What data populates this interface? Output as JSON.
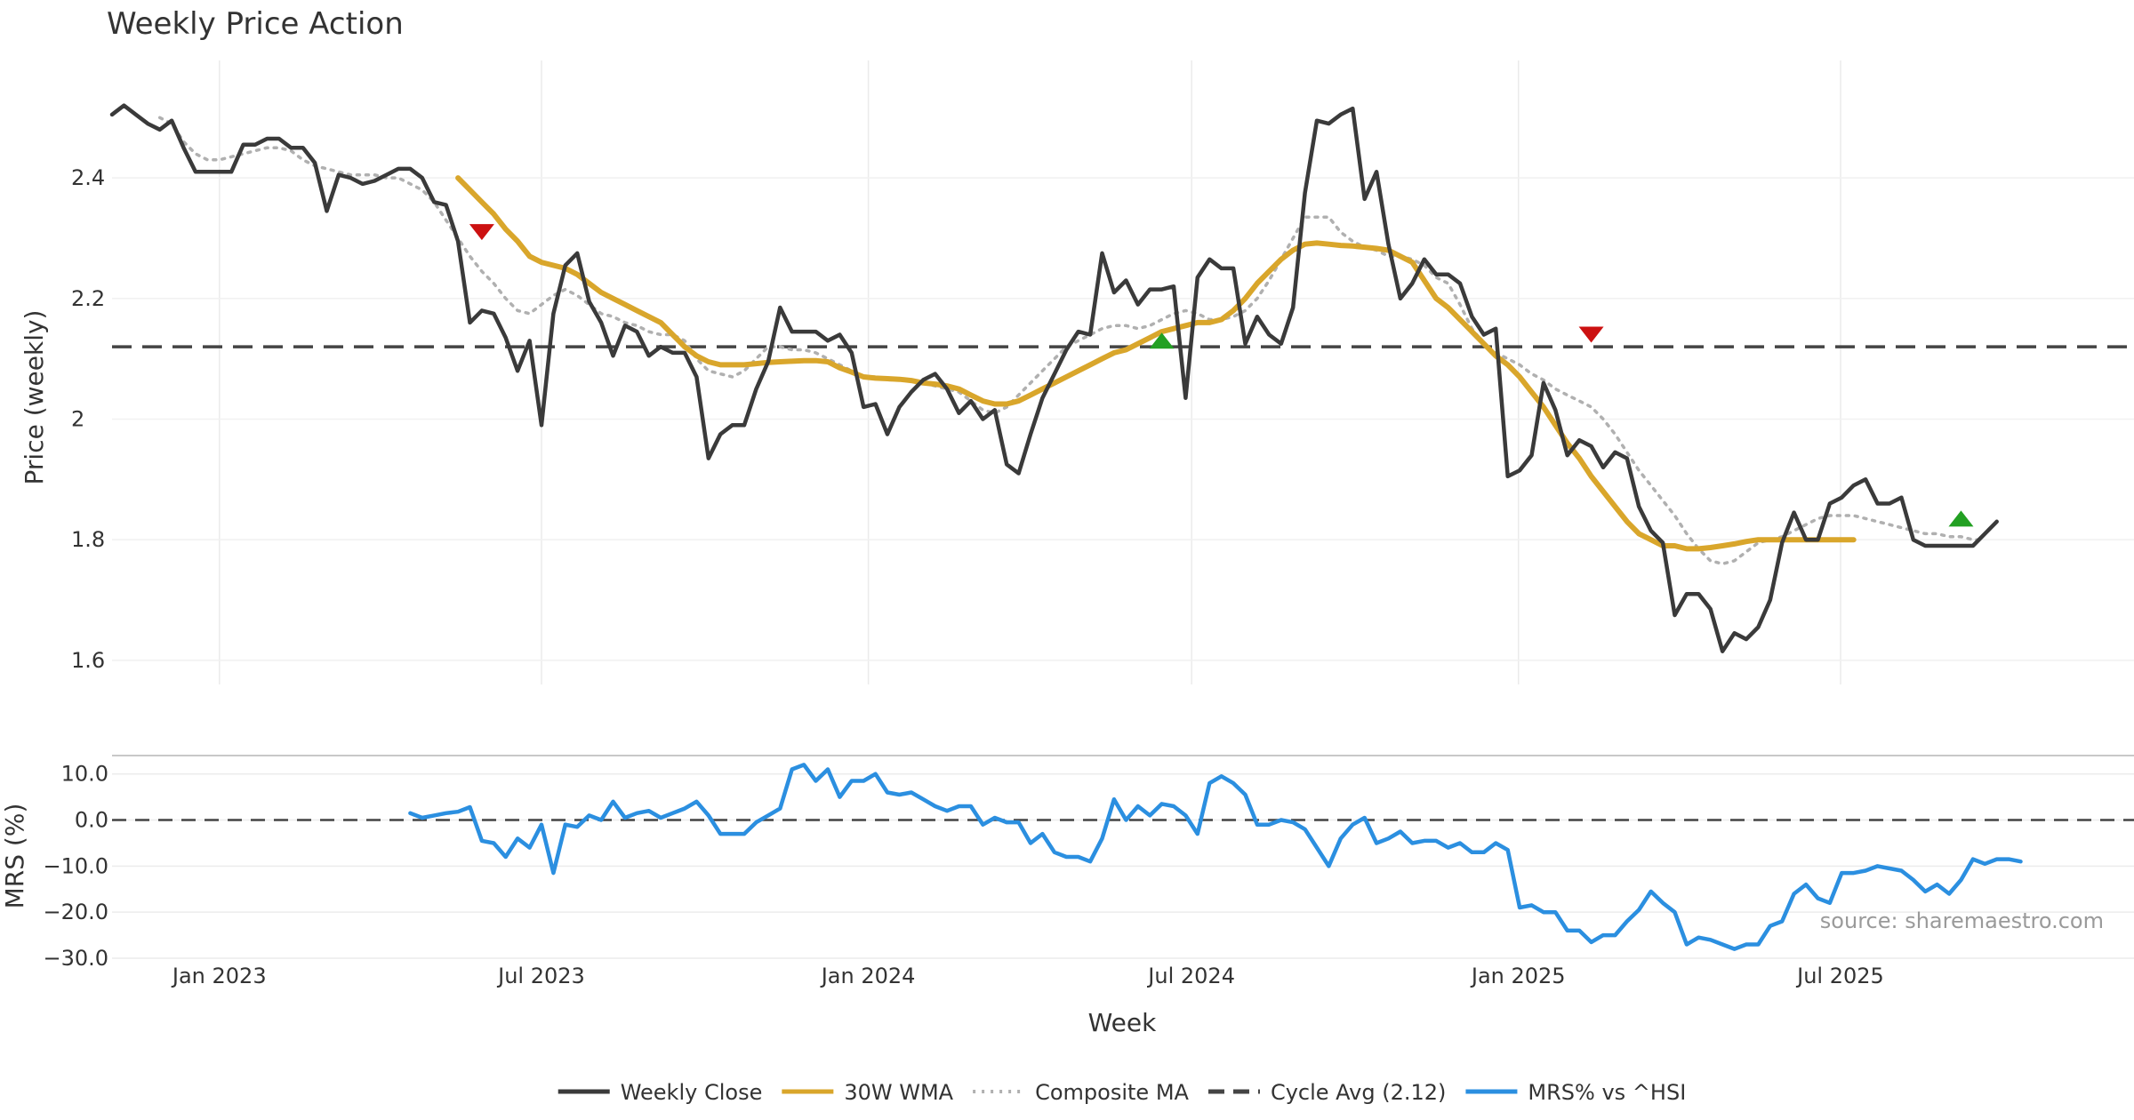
{
  "chart_data": [
    {
      "id": "price",
      "type": "line",
      "title": "Weekly Price Action",
      "ylabel": "Price (weekly)",
      "ylim": [
        1.56,
        2.58
      ],
      "yticks": [
        1.6,
        1.8,
        2,
        2.2,
        2.4
      ],
      "ytick_labels": [
        "1.6",
        "1.8",
        "2",
        "2.2",
        "2.4"
      ],
      "grid": true,
      "series": [
        {
          "name": "Weekly Close",
          "color": "#3a3a3a",
          "style": "solid",
          "start_index": 0,
          "values": [
            2.505,
            2.52,
            2.505,
            2.49,
            2.48,
            2.495,
            2.45,
            2.41,
            2.41,
            2.41,
            2.41,
            2.455,
            2.455,
            2.465,
            2.465,
            2.45,
            2.45,
            2.425,
            2.345,
            2.405,
            2.4,
            2.39,
            2.395,
            2.405,
            2.415,
            2.415,
            2.4,
            2.36,
            2.355,
            2.295,
            2.16,
            2.18,
            2.175,
            2.135,
            2.08,
            2.13,
            1.99,
            2.175,
            2.255,
            2.275,
            2.195,
            2.16,
            2.105,
            2.155,
            2.145,
            2.105,
            2.12,
            2.11,
            2.11,
            2.07,
            1.935,
            1.975,
            1.99,
            1.99,
            2.05,
            2.095,
            2.185,
            2.145,
            2.145,
            2.145,
            2.13,
            2.14,
            2.11,
            2.02,
            2.025,
            1.975,
            2.02,
            2.045,
            2.065,
            2.075,
            2.05,
            2.01,
            2.03,
            2.0,
            2.015,
            1.925,
            1.91,
            1.975,
            2.035,
            2.075,
            2.115,
            2.145,
            2.14,
            2.275,
            2.21,
            2.23,
            2.19,
            2.215,
            2.215,
            2.22,
            2.035,
            2.235,
            2.265,
            2.25,
            2.25,
            2.125,
            2.17,
            2.14,
            2.125,
            2.185,
            2.375,
            2.495,
            2.49,
            2.505,
            2.515,
            2.365,
            2.41,
            2.29,
            2.2,
            2.225,
            2.265,
            2.24,
            2.24,
            2.225,
            2.17,
            2.14,
            2.15,
            1.905,
            1.915,
            1.94,
            2.06,
            2.015,
            1.94,
            1.965,
            1.955,
            1.92,
            1.945,
            1.935,
            1.855,
            1.815,
            1.795,
            1.675,
            1.71,
            1.71,
            1.685,
            1.615,
            1.645,
            1.635,
            1.655,
            1.7,
            1.795,
            1.845,
            1.8,
            1.8,
            1.86,
            1.87,
            1.89,
            1.9,
            1.86,
            1.86,
            1.87,
            1.8,
            1.79,
            1.79,
            1.79,
            1.79,
            1.79,
            1.81,
            1.83
          ]
        },
        {
          "name": "30W WMA",
          "color": "#d9a62b",
          "style": "solid",
          "start_index": 29,
          "values": [
            2.4,
            2.38,
            2.36,
            2.34,
            2.315,
            2.295,
            2.27,
            2.26,
            2.255,
            2.25,
            2.24,
            2.225,
            2.21,
            2.2,
            2.19,
            2.18,
            2.17,
            2.16,
            2.14,
            2.12,
            2.105,
            2.095,
            2.09,
            2.09,
            2.09,
            2.092,
            2.094,
            2.095,
            2.096,
            2.097,
            2.097,
            2.095,
            2.085,
            2.078,
            2.07,
            2.068,
            2.067,
            2.066,
            2.064,
            2.06,
            2.058,
            2.055,
            2.05,
            2.04,
            2.03,
            2.025,
            2.025,
            2.03,
            2.04,
            2.05,
            2.06,
            2.07,
            2.08,
            2.09,
            2.1,
            2.11,
            2.115,
            2.125,
            2.135,
            2.145,
            2.15,
            2.155,
            2.16,
            2.16,
            2.165,
            2.18,
            2.2,
            2.225,
            2.245,
            2.265,
            2.28,
            2.29,
            2.292,
            2.29,
            2.288,
            2.287,
            2.285,
            2.283,
            2.28,
            2.27,
            2.26,
            2.23,
            2.2,
            2.185,
            2.165,
            2.145,
            2.125,
            2.105,
            2.09,
            2.07,
            2.045,
            2.02,
            1.99,
            1.96,
            1.935,
            1.905,
            1.88,
            1.855,
            1.83,
            1.81,
            1.8,
            1.79,
            1.79,
            1.785,
            1.785,
            1.787,
            1.79,
            1.793,
            1.797,
            1.8,
            1.8,
            1.8,
            1.8,
            1.8,
            1.8,
            1.8,
            1.8,
            1.8
          ]
        },
        {
          "name": "Composite MA",
          "color": "#b0b0b0",
          "style": "dotted",
          "start_index": 4,
          "values": [
            2.5,
            2.49,
            2.46,
            2.44,
            2.43,
            2.43,
            2.435,
            2.44,
            2.445,
            2.45,
            2.45,
            2.445,
            2.43,
            2.42,
            2.415,
            2.41,
            2.405,
            2.405,
            2.405,
            2.4,
            2.4,
            2.39,
            2.38,
            2.36,
            2.33,
            2.3,
            2.27,
            2.245,
            2.225,
            2.2,
            2.18,
            2.175,
            2.19,
            2.205,
            2.215,
            2.205,
            2.19,
            2.175,
            2.17,
            2.16,
            2.155,
            2.145,
            2.14,
            2.14,
            2.13,
            2.1,
            2.08,
            2.075,
            2.07,
            2.08,
            2.1,
            2.12,
            2.12,
            2.115,
            2.115,
            2.11,
            2.1,
            2.09,
            2.08,
            2.07,
            2.07,
            2.065,
            2.065,
            2.065,
            2.06,
            2.055,
            2.05,
            2.045,
            2.03,
            2.015,
            2.01,
            2.02,
            2.04,
            2.06,
            2.08,
            2.1,
            2.12,
            2.13,
            2.14,
            2.15,
            2.155,
            2.155,
            2.15,
            2.155,
            2.165,
            2.175,
            2.18,
            2.175,
            2.165,
            2.165,
            2.17,
            2.18,
            2.2,
            2.23,
            2.265,
            2.3,
            2.335,
            2.335,
            2.335,
            2.31,
            2.295,
            2.285,
            2.28,
            2.27,
            2.27,
            2.265,
            2.255,
            2.235,
            2.225,
            2.19,
            2.15,
            2.125,
            2.11,
            2.1,
            2.09,
            2.075,
            2.065,
            2.05,
            2.04,
            2.03,
            2.02,
            2.0,
            1.975,
            1.945,
            1.915,
            1.89,
            1.865,
            1.84,
            1.81,
            1.785,
            1.765,
            1.76,
            1.765,
            1.78,
            1.795,
            1.8,
            1.805,
            1.815,
            1.825,
            1.835,
            1.84,
            1.84,
            1.84,
            1.835,
            1.83,
            1.825,
            1.82,
            1.815,
            1.81,
            1.81,
            1.805,
            1.805,
            1.8,
            1.8
          ]
        }
      ],
      "reference_line": {
        "name": "Cycle Avg (2.12)",
        "value": 2.12,
        "color": "#444444",
        "style": "dashed"
      },
      "markers": [
        {
          "type": "sell",
          "index": 31,
          "value": 2.31,
          "color": "#cc1111"
        },
        {
          "type": "buy",
          "index": 88,
          "value": 2.13,
          "color": "#22a022"
        },
        {
          "type": "sell",
          "index": 124,
          "value": 2.14,
          "color": "#cc1111"
        },
        {
          "type": "buy",
          "index": 155,
          "value": 1.835,
          "color": "#22a022"
        }
      ]
    },
    {
      "id": "mrs",
      "type": "line",
      "ylabel": "MRS (%)",
      "ylim": [
        -30,
        14
      ],
      "yticks": [
        10,
        0,
        -10,
        -20,
        -30
      ],
      "ytick_labels": [
        "10.0",
        "0.0",
        "−10.0",
        "−20.0",
        "−30.0"
      ],
      "xlabel": "Week",
      "grid": true,
      "zero_line": {
        "value": 0,
        "color": "#444444",
        "style": "dashed"
      },
      "series": [
        {
          "name": "MRS% vs ^HSI",
          "color": "#2b8fe0",
          "style": "solid",
          "start_index": 25,
          "values": [
            1.5,
            0.5,
            1.0,
            1.5,
            1.8,
            2.8,
            -4.5,
            -5.0,
            -8.0,
            -4.0,
            -6.0,
            -1.0,
            -11.5,
            -1.0,
            -1.5,
            1.0,
            0.0,
            4.0,
            0.5,
            1.5,
            2.0,
            0.5,
            1.5,
            2.5,
            4.0,
            1.0,
            -3.0,
            -3.0,
            -3.0,
            -0.5,
            1.0,
            2.5,
            11.0,
            12.0,
            8.5,
            11.0,
            5.0,
            8.5,
            8.5,
            10.0,
            6.0,
            5.5,
            6.0,
            4.5,
            3.0,
            2.0,
            3.0,
            3.0,
            -1.0,
            0.5,
            -0.5,
            -0.5,
            -5.0,
            -3.0,
            -7.0,
            -8.0,
            -8.0,
            -9.0,
            -4.0,
            4.5,
            0.0,
            3.0,
            1.0,
            3.5,
            3.0,
            1.0,
            -3.0,
            8.0,
            9.5,
            8.0,
            5.5,
            -1.0,
            -1.0,
            0.0,
            -0.5,
            -2.0,
            -6.0,
            -10.0,
            -4.0,
            -1.0,
            0.5,
            -5.0,
            -4.0,
            -2.5,
            -5.0,
            -4.5,
            -4.5,
            -6.0,
            -5.0,
            -7.0,
            -7.0,
            -5.0,
            -6.5,
            -19.0,
            -18.5,
            -20.0,
            -20.0,
            -24.0,
            -24.0,
            -26.5,
            -25.0,
            -25.0,
            -22.0,
            -19.5,
            -15.5,
            -18.0,
            -20.0,
            -27.0,
            -25.5,
            -26.0,
            -27.0,
            -28.0,
            -27.0,
            -27.0,
            -23.0,
            -22.0,
            -16.0,
            -14.0,
            -17.0,
            -18.0,
            -11.5,
            -11.5,
            -11.0,
            -10.0,
            -10.5,
            -11.0,
            -13.0,
            -15.5,
            -14.0,
            -16.0,
            -13.0,
            -8.5,
            -9.5,
            -8.5,
            -8.5,
            -9.0
          ]
        }
      ],
      "annotation": "source: sharemaestro.com"
    }
  ],
  "x_axis": {
    "label": "Week",
    "n_weeks": 170,
    "ticks": [
      {
        "label": "Jan 2023",
        "index": 9
      },
      {
        "label": "Jul 2023",
        "index": 36
      },
      {
        "label": "Jan 2024",
        "index": 63.4
      },
      {
        "label": "Jul 2024",
        "index": 90.5
      },
      {
        "label": "Jan 2025",
        "index": 117.9
      },
      {
        "label": "Jul 2025",
        "index": 144.9
      }
    ]
  },
  "legend": [
    {
      "label": "Weekly Close",
      "color": "#3a3a3a",
      "style": "solid"
    },
    {
      "label": "30W WMA",
      "color": "#d9a62b",
      "style": "solid"
    },
    {
      "label": "Composite MA",
      "color": "#b0b0b0",
      "style": "dotted"
    },
    {
      "label": "Cycle Avg (2.12)",
      "color": "#444444",
      "style": "dashed"
    },
    {
      "label": "MRS% vs ^HSI",
      "color": "#2b8fe0",
      "style": "solid"
    }
  ]
}
